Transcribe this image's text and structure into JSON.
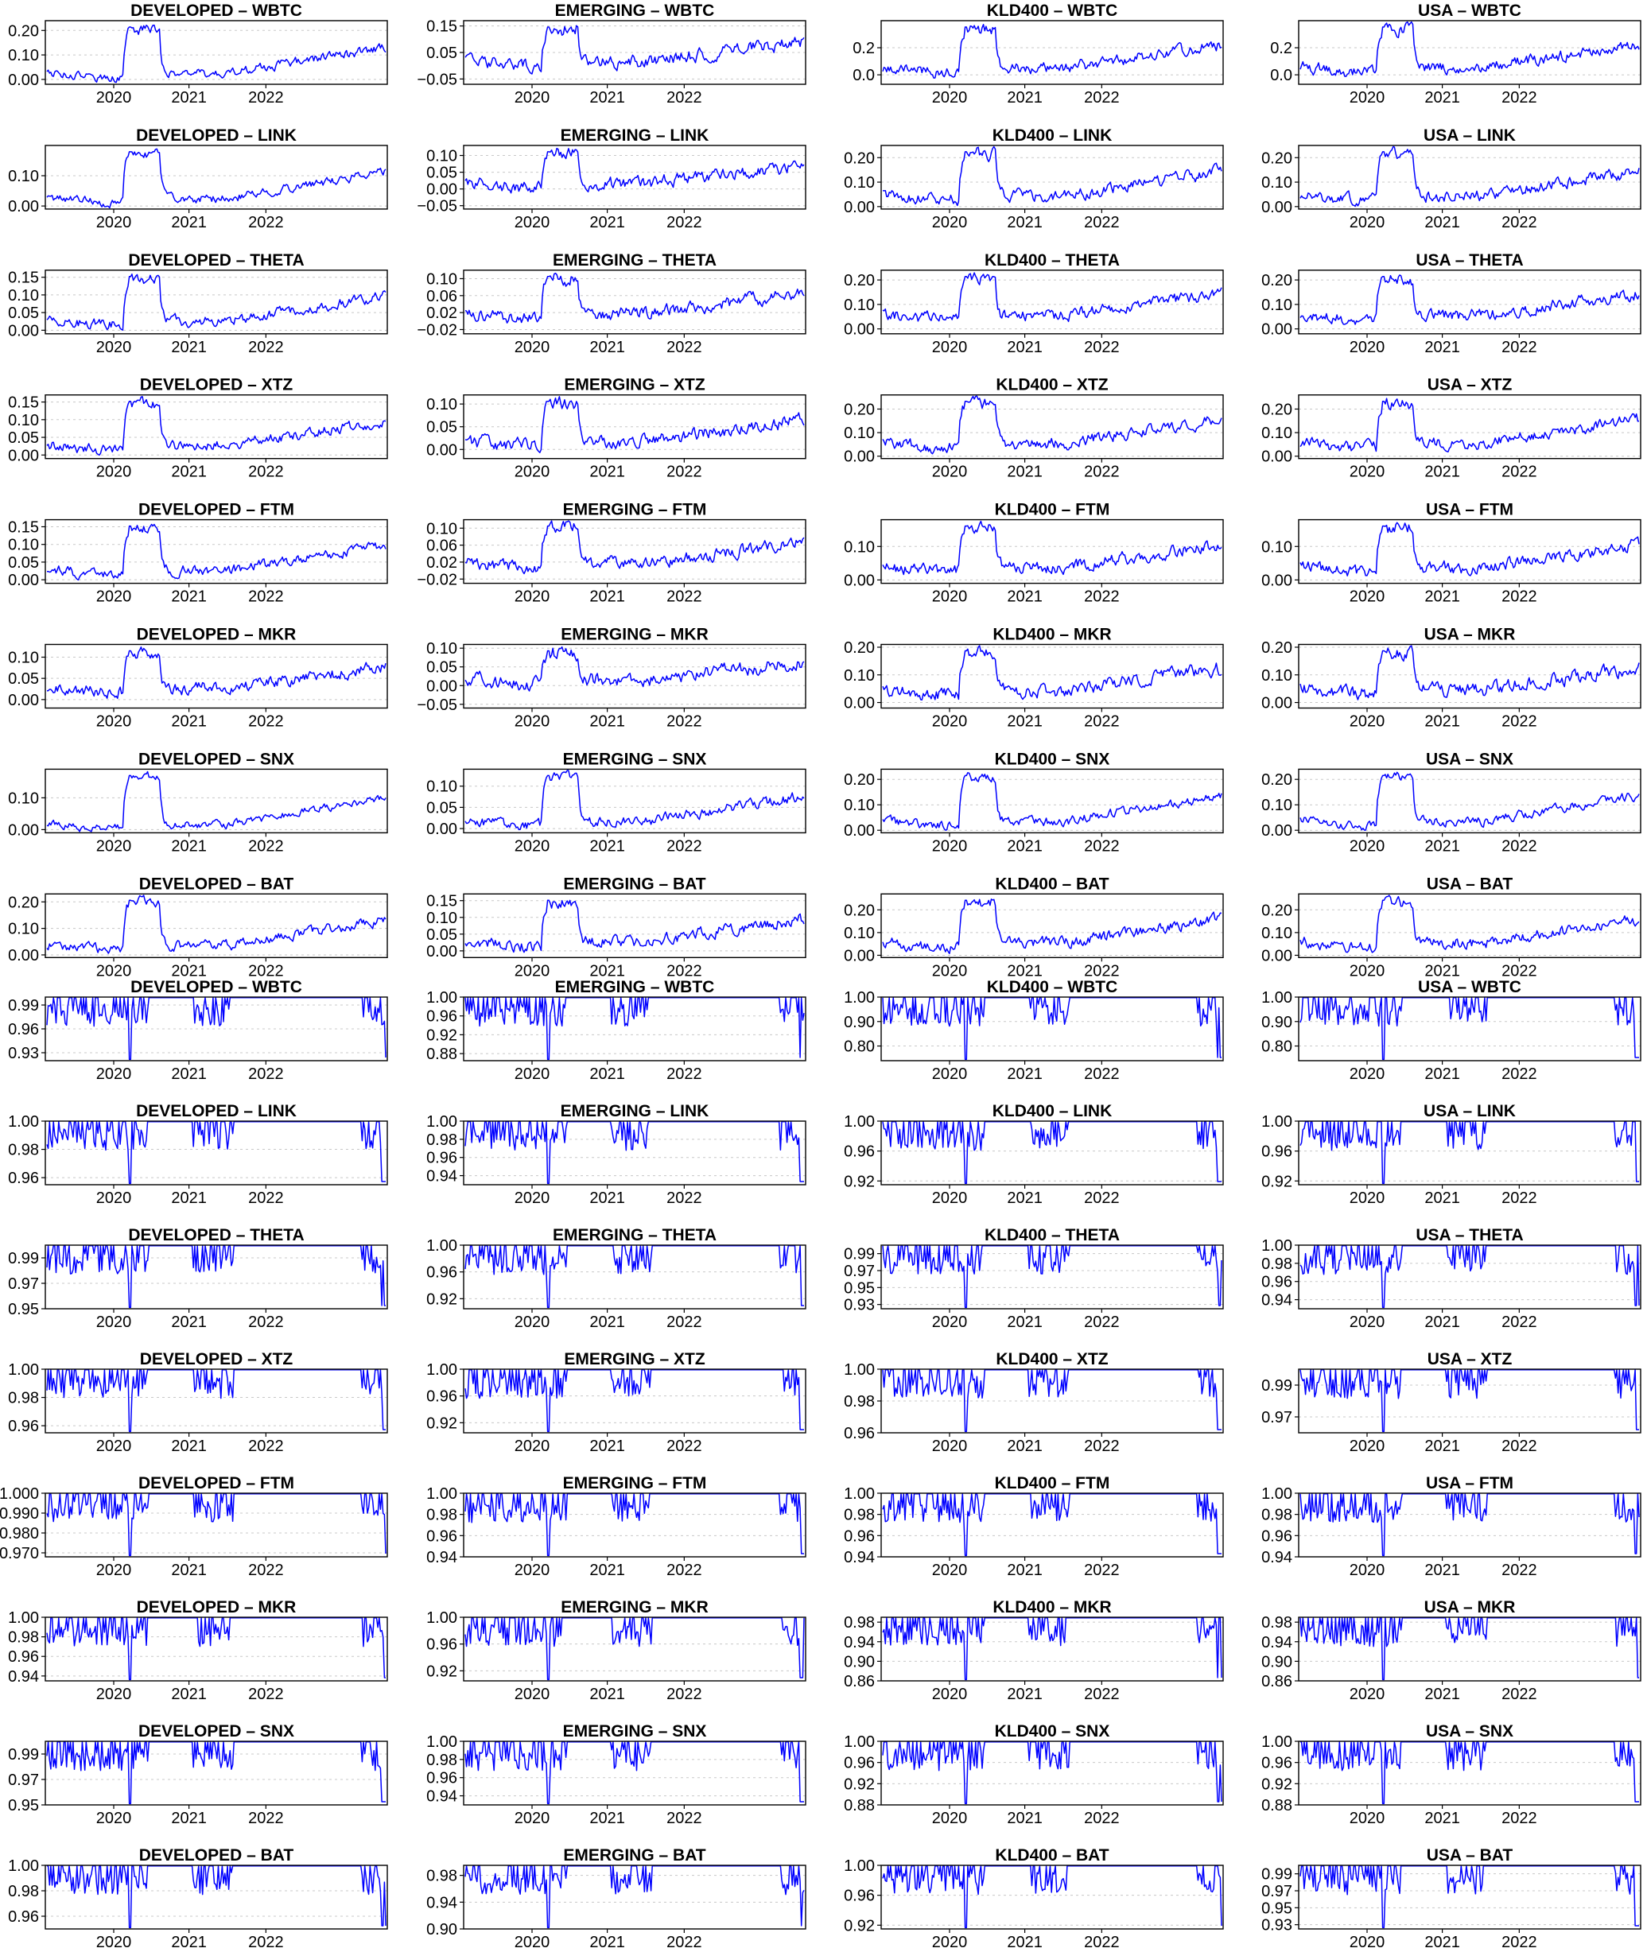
{
  "chart_data": {
    "type": "line",
    "grid": "horizontal dashed",
    "legend": "none",
    "line_color": "#0000ff",
    "x_ticks": [
      "2020",
      "2021",
      "2022"
    ],
    "x_range": [
      "2019-03",
      "2023-09"
    ],
    "markets": [
      "DEVELOPED",
      "EMERGING",
      "KLD400",
      "USA"
    ],
    "tokens": [
      "WBTC",
      "LINK",
      "THETA",
      "XTZ",
      "FTM",
      "MKR",
      "SNX",
      "BAT"
    ],
    "sections": [
      {
        "name": "top_block",
        "panels": [
          {
            "title": "DEVELOPED – WBTC",
            "yticks": [
              "0.00",
              "0.10",
              "0.20"
            ],
            "ylim": [
              -0.02,
              0.24
            ],
            "baseline": 0.03,
            "noise": 0.015,
            "seed": 1
          },
          {
            "title": "EMERGING – WBTC",
            "yticks": [
              "−0.05",
              "0.05",
              "0.15"
            ],
            "ylim": [
              -0.07,
              0.17
            ],
            "baseline": 0.02,
            "noise": 0.02,
            "seed": 2
          },
          {
            "title": "KLD400 – WBTC",
            "yticks": [
              "0.0",
              "0.2"
            ],
            "ylim": [
              -0.07,
              0.4
            ],
            "baseline": 0.06,
            "noise": 0.035,
            "seed": 3
          },
          {
            "title": "USA – WBTC",
            "yticks": [
              "0.0",
              "0.2"
            ],
            "ylim": [
              -0.07,
              0.4
            ],
            "baseline": 0.06,
            "noise": 0.035,
            "seed": 4
          },
          {
            "title": "DEVELOPED – LINK",
            "yticks": [
              "0.00",
              "0.10"
            ],
            "ylim": [
              -0.01,
              0.2
            ],
            "baseline": 0.03,
            "noise": 0.012,
            "seed": 5
          },
          {
            "title": "EMERGING – LINK",
            "yticks": [
              "−0.05",
              "0.00",
              "0.05",
              "0.10"
            ],
            "ylim": [
              -0.06,
              0.13
            ],
            "baseline": 0.02,
            "noise": 0.015,
            "seed": 6
          },
          {
            "title": "KLD400 – LINK",
            "yticks": [
              "0.00",
              "0.10",
              "0.20"
            ],
            "ylim": [
              -0.01,
              0.25
            ],
            "baseline": 0.05,
            "noise": 0.02,
            "seed": 7
          },
          {
            "title": "USA – LINK",
            "yticks": [
              "0.00",
              "0.10",
              "0.20"
            ],
            "ylim": [
              -0.01,
              0.25
            ],
            "baseline": 0.05,
            "noise": 0.02,
            "seed": 8
          },
          {
            "title": "DEVELOPED – THETA",
            "yticks": [
              "0.00",
              "0.05",
              "0.10",
              "0.15"
            ],
            "ylim": [
              -0.01,
              0.17
            ],
            "baseline": 0.03,
            "noise": 0.012,
            "seed": 9
          },
          {
            "title": "EMERGING – THETA",
            "yticks": [
              "−0.02",
              "0.02",
              "0.06",
              "0.10"
            ],
            "ylim": [
              -0.03,
              0.12
            ],
            "baseline": 0.02,
            "noise": 0.012,
            "seed": 10
          },
          {
            "title": "KLD400 – THETA",
            "yticks": [
              "0.00",
              "0.10",
              "0.20"
            ],
            "ylim": [
              -0.02,
              0.24
            ],
            "baseline": 0.06,
            "noise": 0.02,
            "seed": 11
          },
          {
            "title": "USA – THETA",
            "yticks": [
              "0.00",
              "0.10",
              "0.20"
            ],
            "ylim": [
              -0.02,
              0.24
            ],
            "baseline": 0.06,
            "noise": 0.02,
            "seed": 12
          },
          {
            "title": "DEVELOPED – XTZ",
            "yticks": [
              "0.00",
              "0.05",
              "0.10",
              "0.15"
            ],
            "ylim": [
              -0.01,
              0.17
            ],
            "baseline": 0.03,
            "noise": 0.012,
            "seed": 13
          },
          {
            "title": "EMERGING – XTZ",
            "yticks": [
              "0.00",
              "0.05",
              "0.10"
            ],
            "ylim": [
              -0.02,
              0.12
            ],
            "baseline": 0.02,
            "noise": 0.012,
            "seed": 14
          },
          {
            "title": "KLD400 – XTZ",
            "yticks": [
              "0.00",
              "0.10",
              "0.20"
            ],
            "ylim": [
              -0.01,
              0.26
            ],
            "baseline": 0.06,
            "noise": 0.02,
            "seed": 15
          },
          {
            "title": "USA – XTZ",
            "yticks": [
              "0.00",
              "0.10",
              "0.20"
            ],
            "ylim": [
              -0.01,
              0.26
            ],
            "baseline": 0.06,
            "noise": 0.02,
            "seed": 16
          },
          {
            "title": "DEVELOPED – FTM",
            "yticks": [
              "0.00",
              "0.05",
              "0.10",
              "0.15"
            ],
            "ylim": [
              -0.01,
              0.17
            ],
            "baseline": 0.03,
            "noise": 0.012,
            "seed": 17
          },
          {
            "title": "EMERGING – FTM",
            "yticks": [
              "−0.02",
              "0.02",
              "0.06",
              "0.10"
            ],
            "ylim": [
              -0.03,
              0.12
            ],
            "baseline": 0.02,
            "noise": 0.012,
            "seed": 18
          },
          {
            "title": "KLD400 – FTM",
            "yticks": [
              "0.00",
              "0.10"
            ],
            "ylim": [
              -0.01,
              0.18
            ],
            "baseline": 0.04,
            "noise": 0.015,
            "seed": 19
          },
          {
            "title": "USA – FTM",
            "yticks": [
              "0.00",
              "0.10"
            ],
            "ylim": [
              -0.01,
              0.18
            ],
            "baseline": 0.04,
            "noise": 0.015,
            "seed": 20
          },
          {
            "title": "DEVELOPED – MKR",
            "yticks": [
              "0.00",
              "0.05",
              "0.10"
            ],
            "ylim": [
              -0.02,
              0.13
            ],
            "baseline": 0.03,
            "noise": 0.012,
            "seed": 21
          },
          {
            "title": "EMERGING – MKR",
            "yticks": [
              "−0.05",
              "0.00",
              "0.05",
              "0.10"
            ],
            "ylim": [
              -0.06,
              0.11
            ],
            "baseline": 0.02,
            "noise": 0.015,
            "seed": 22
          },
          {
            "title": "KLD400 – MKR",
            "yticks": [
              "0.00",
              "0.10",
              "0.20"
            ],
            "ylim": [
              -0.02,
              0.21
            ],
            "baseline": 0.05,
            "noise": 0.02,
            "seed": 23
          },
          {
            "title": "USA – MKR",
            "yticks": [
              "0.00",
              "0.10",
              "0.20"
            ],
            "ylim": [
              -0.02,
              0.21
            ],
            "baseline": 0.05,
            "noise": 0.02,
            "seed": 24
          },
          {
            "title": "DEVELOPED – SNX",
            "yticks": [
              "0.00",
              "0.10"
            ],
            "ylim": [
              -0.01,
              0.19
            ],
            "baseline": 0.02,
            "noise": 0.01,
            "seed": 25
          },
          {
            "title": "EMERGING – SNX",
            "yticks": [
              "0.00",
              "0.05",
              "0.10"
            ],
            "ylim": [
              -0.01,
              0.14
            ],
            "baseline": 0.02,
            "noise": 0.01,
            "seed": 26
          },
          {
            "title": "KLD400 – SNX",
            "yticks": [
              "0.00",
              "0.10",
              "0.20"
            ],
            "ylim": [
              -0.01,
              0.24
            ],
            "baseline": 0.04,
            "noise": 0.015,
            "seed": 27
          },
          {
            "title": "USA – SNX",
            "yticks": [
              "0.00",
              "0.10",
              "0.20"
            ],
            "ylim": [
              -0.01,
              0.24
            ],
            "baseline": 0.04,
            "noise": 0.015,
            "seed": 28
          },
          {
            "title": "DEVELOPED – BAT",
            "yticks": [
              "0.00",
              "0.10",
              "0.20"
            ],
            "ylim": [
              -0.01,
              0.23
            ],
            "baseline": 0.04,
            "noise": 0.015,
            "seed": 29
          },
          {
            "title": "EMERGING – BAT",
            "yticks": [
              "0.00",
              "0.05",
              "0.10",
              "0.15"
            ],
            "ylim": [
              -0.02,
              0.17
            ],
            "baseline": 0.03,
            "noise": 0.015,
            "seed": 30
          },
          {
            "title": "KLD400 – BAT",
            "yticks": [
              "0.00",
              "0.10",
              "0.20"
            ],
            "ylim": [
              -0.01,
              0.27
            ],
            "baseline": 0.06,
            "noise": 0.02,
            "seed": 31
          },
          {
            "title": "USA – BAT",
            "yticks": [
              "0.00",
              "0.10",
              "0.20"
            ],
            "ylim": [
              -0.01,
              0.27
            ],
            "baseline": 0.06,
            "noise": 0.02,
            "seed": 32
          }
        ]
      },
      {
        "name": "bottom_block",
        "panels": [
          {
            "title": "DEVELOPED – WBTC",
            "yticks": [
              "0.93",
              "0.96",
              "0.99"
            ],
            "ylim": [
              0.92,
              1.0
            ],
            "seed": 41
          },
          {
            "title": "EMERGING – WBTC",
            "yticks": [
              "0.88",
              "0.92",
              "0.96",
              "1.00"
            ],
            "ylim": [
              0.865,
              1.0
            ],
            "seed": 42
          },
          {
            "title": "KLD400 – WBTC",
            "yticks": [
              "0.80",
              "0.90",
              "1.00"
            ],
            "ylim": [
              0.74,
              1.0
            ],
            "seed": 43
          },
          {
            "title": "USA – WBTC",
            "yticks": [
              "0.80",
              "0.90",
              "1.00"
            ],
            "ylim": [
              0.74,
              1.0
            ],
            "seed": 44
          },
          {
            "title": "DEVELOPED – LINK",
            "yticks": [
              "0.96",
              "0.98",
              "1.00"
            ],
            "ylim": [
              0.955,
              1.0
            ],
            "seed": 45
          },
          {
            "title": "EMERGING – LINK",
            "yticks": [
              "0.94",
              "0.96",
              "0.98",
              "1.00"
            ],
            "ylim": [
              0.93,
              1.0
            ],
            "seed": 46
          },
          {
            "title": "KLD400 – LINK",
            "yticks": [
              "0.92",
              "0.96",
              "1.00"
            ],
            "ylim": [
              0.915,
              1.0
            ],
            "seed": 47
          },
          {
            "title": "USA – LINK",
            "yticks": [
              "0.92",
              "0.96",
              "1.00"
            ],
            "ylim": [
              0.915,
              1.0
            ],
            "seed": 48
          },
          {
            "title": "DEVELOPED – THETA",
            "yticks": [
              "0.95",
              "0.97",
              "0.99"
            ],
            "ylim": [
              0.95,
              1.0
            ],
            "seed": 49
          },
          {
            "title": "EMERGING – THETA",
            "yticks": [
              "0.92",
              "0.96",
              "1.00"
            ],
            "ylim": [
              0.905,
              1.0
            ],
            "seed": 50
          },
          {
            "title": "KLD400 – THETA",
            "yticks": [
              "0.93",
              "0.95",
              "0.97",
              "0.99"
            ],
            "ylim": [
              0.925,
              1.0
            ],
            "seed": 51
          },
          {
            "title": "USA – THETA",
            "yticks": [
              "0.94",
              "0.96",
              "0.98",
              "1.00"
            ],
            "ylim": [
              0.93,
              1.0
            ],
            "seed": 52
          },
          {
            "title": "DEVELOPED – XTZ",
            "yticks": [
              "0.96",
              "0.98",
              "1.00"
            ],
            "ylim": [
              0.955,
              1.0
            ],
            "seed": 53
          },
          {
            "title": "EMERGING – XTZ",
            "yticks": [
              "0.92",
              "0.96",
              "1.00"
            ],
            "ylim": [
              0.905,
              1.0
            ],
            "seed": 54
          },
          {
            "title": "KLD400 – XTZ",
            "yticks": [
              "0.96",
              "0.98",
              "1.00"
            ],
            "ylim": [
              0.96,
              1.0
            ],
            "seed": 55
          },
          {
            "title": "USA – XTZ",
            "yticks": [
              "0.97",
              "0.99"
            ],
            "ylim": [
              0.96,
              1.0
            ],
            "seed": 56
          },
          {
            "title": "DEVELOPED – FTM",
            "yticks": [
              "0.970",
              "0.980",
              "0.990",
              "1.000"
            ],
            "ylim": [
              0.968,
              1.0
            ],
            "seed": 57
          },
          {
            "title": "EMERGING – FTM",
            "yticks": [
              "0.94",
              "0.96",
              "0.98",
              "1.00"
            ],
            "ylim": [
              0.94,
              1.0
            ],
            "seed": 58
          },
          {
            "title": "KLD400 – FTM",
            "yticks": [
              "0.94",
              "0.96",
              "0.98",
              "1.00"
            ],
            "ylim": [
              0.94,
              1.0
            ],
            "seed": 59
          },
          {
            "title": "USA – FTM",
            "yticks": [
              "0.94",
              "0.96",
              "0.98",
              "1.00"
            ],
            "ylim": [
              0.94,
              1.0
            ],
            "seed": 60
          },
          {
            "title": "DEVELOPED – MKR",
            "yticks": [
              "0.94",
              "0.96",
              "0.98",
              "1.00"
            ],
            "ylim": [
              0.935,
              1.0
            ],
            "seed": 61
          },
          {
            "title": "EMERGING – MKR",
            "yticks": [
              "0.92",
              "0.96",
              "1.00"
            ],
            "ylim": [
              0.905,
              1.0
            ],
            "seed": 62
          },
          {
            "title": "KLD400 – MKR",
            "yticks": [
              "0.86",
              "0.90",
              "0.94",
              "0.98"
            ],
            "ylim": [
              0.86,
              0.99
            ],
            "seed": 63
          },
          {
            "title": "USA – MKR",
            "yticks": [
              "0.86",
              "0.90",
              "0.94",
              "0.98"
            ],
            "ylim": [
              0.86,
              0.99
            ],
            "seed": 64
          },
          {
            "title": "DEVELOPED – SNX",
            "yticks": [
              "0.95",
              "0.97",
              "0.99"
            ],
            "ylim": [
              0.95,
              1.0
            ],
            "seed": 65
          },
          {
            "title": "EMERGING – SNX",
            "yticks": [
              "0.94",
              "0.96",
              "0.98",
              "1.00"
            ],
            "ylim": [
              0.93,
              1.0
            ],
            "seed": 66
          },
          {
            "title": "KLD400 – SNX",
            "yticks": [
              "0.88",
              "0.92",
              "0.96",
              "1.00"
            ],
            "ylim": [
              0.88,
              1.0
            ],
            "seed": 67
          },
          {
            "title": "USA – SNX",
            "yticks": [
              "0.88",
              "0.92",
              "0.96",
              "1.00"
            ],
            "ylim": [
              0.88,
              1.0
            ],
            "seed": 68
          },
          {
            "title": "DEVELOPED – BAT",
            "yticks": [
              "0.96",
              "0.98",
              "1.00"
            ],
            "ylim": [
              0.95,
              1.0
            ],
            "seed": 69
          },
          {
            "title": "EMERGING – BAT",
            "yticks": [
              "0.90",
              "0.94",
              "0.98"
            ],
            "ylim": [
              0.9,
              0.995
            ],
            "seed": 70
          },
          {
            "title": "KLD400 – BAT",
            "yticks": [
              "0.92",
              "0.96",
              "1.00"
            ],
            "ylim": [
              0.915,
              1.0
            ],
            "seed": 71
          },
          {
            "title": "USA – BAT",
            "yticks": [
              "0.93",
              "0.95",
              "0.97",
              "0.99"
            ],
            "ylim": [
              0.925,
              1.0
            ],
            "seed": 72
          }
        ]
      }
    ]
  }
}
